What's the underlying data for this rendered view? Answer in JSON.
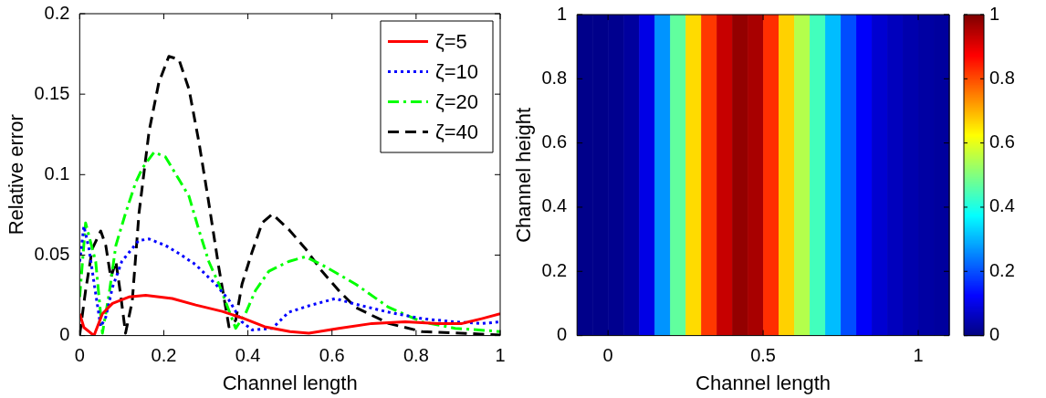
{
  "chart_data": [
    {
      "type": "line",
      "xlabel": "Channel length",
      "ylabel": "Relative error",
      "xlim": [
        0,
        1
      ],
      "ylim": [
        0,
        0.2
      ],
      "xticks": [
        0,
        0.2,
        0.4,
        0.6,
        0.8,
        1
      ],
      "yticks": [
        0,
        0.05,
        0.1,
        0.15,
        0.2
      ],
      "legend": "top right",
      "series": [
        {
          "name": "ζ=5",
          "color": "#ff0000",
          "line_style": "solid",
          "x": [
            0,
            0.01,
            0.034,
            0.054,
            0.078,
            0.117,
            0.157,
            0.22,
            0.276,
            0.339,
            0.386,
            0.44,
            0.5,
            0.545,
            0.616,
            0.695,
            0.774,
            0.853,
            0.909,
            0.956,
            1
          ],
          "values": [
            0.0135,
            0.005,
            0.0,
            0.0135,
            0.02,
            0.024,
            0.025,
            0.023,
            0.019,
            0.015,
            0.011,
            0.0055,
            0.0025,
            0.0015,
            0.0045,
            0.0075,
            0.0085,
            0.0075,
            0.0075,
            0.0105,
            0.0135
          ]
        },
        {
          "name": "ζ=10",
          "color": "#0000ff",
          "line_style": "dotted",
          "x": [
            0,
            0.01,
            0.022,
            0.038,
            0.05,
            0.062,
            0.078,
            0.1,
            0.14,
            0.165,
            0.204,
            0.236,
            0.276,
            0.323,
            0.355,
            0.386,
            0.41,
            0.458,
            0.497,
            0.545,
            0.608,
            0.656,
            0.735,
            0.814,
            0.893,
            0.956,
            1
          ],
          "values": [
            0.046,
            0.068,
            0.054,
            0.026,
            0.0055,
            0.0115,
            0.03,
            0.046,
            0.059,
            0.06,
            0.056,
            0.051,
            0.044,
            0.032,
            0.022,
            0.0085,
            0.0035,
            0.0045,
            0.0145,
            0.0185,
            0.023,
            0.0195,
            0.0145,
            0.0105,
            0.0085,
            0.0075,
            0.0085
          ]
        },
        {
          "name": "ζ=20",
          "color": "#00ff00",
          "line_style": "dashdot",
          "x": [
            0,
            0.014,
            0.026,
            0.038,
            0.054,
            0.07,
            0.086,
            0.109,
            0.133,
            0.149,
            0.177,
            0.204,
            0.236,
            0.26,
            0.283,
            0.307,
            0.331,
            0.355,
            0.371,
            0.394,
            0.418,
            0.45,
            0.497,
            0.537,
            0.576,
            0.616,
            0.656,
            0.735,
            0.814,
            0.893,
            1
          ],
          "values": [
            0.024,
            0.07,
            0.058,
            0.046,
            0.0015,
            0.026,
            0.056,
            0.076,
            0.095,
            0.104,
            0.114,
            0.111,
            0.097,
            0.0865,
            0.066,
            0.046,
            0.032,
            0.0155,
            0.0045,
            0.0135,
            0.028,
            0.04,
            0.046,
            0.049,
            0.044,
            0.038,
            0.032,
            0.0175,
            0.0085,
            0.0045,
            0.0025
          ]
        },
        {
          "name": "ζ=40",
          "color": "#000000",
          "line_style": "dashed",
          "x": [
            0,
            0.014,
            0.03,
            0.05,
            0.062,
            0.074,
            0.086,
            0.097,
            0.109,
            0.125,
            0.141,
            0.165,
            0.188,
            0.212,
            0.236,
            0.26,
            0.283,
            0.307,
            0.331,
            0.355,
            0.371,
            0.386,
            0.41,
            0.434,
            0.458,
            0.497,
            0.537,
            0.576,
            0.616,
            0.656,
            0.735,
            0.814,
            1
          ],
          "values": [
            0.0004,
            0.028,
            0.054,
            0.065,
            0.056,
            0.036,
            0.046,
            0.026,
            0.0015,
            0.0215,
            0.076,
            0.127,
            0.157,
            0.1735,
            0.1715,
            0.153,
            0.121,
            0.0825,
            0.042,
            0.0055,
            0.0095,
            0.032,
            0.052,
            0.07,
            0.0755,
            0.066,
            0.054,
            0.04,
            0.028,
            0.0175,
            0.0075,
            0.0025,
            0.0004
          ]
        }
      ]
    },
    {
      "type": "heatmap",
      "xlabel": "Channel length",
      "ylabel": "Channel height",
      "xlim": [
        -0.1,
        1.1
      ],
      "ylim": [
        0,
        1
      ],
      "xticks": [
        0,
        0.5,
        1
      ],
      "yticks": [
        0,
        0.2,
        0.4,
        0.6,
        0.8,
        1
      ],
      "clim": [
        0,
        1
      ],
      "cticks": [
        0,
        0.2,
        0.4,
        0.6,
        0.8,
        1
      ],
      "x": [
        -0.075,
        -0.025,
        0.025,
        0.075,
        0.125,
        0.175,
        0.225,
        0.275,
        0.325,
        0.375,
        0.425,
        0.475,
        0.525,
        0.575,
        0.625,
        0.675,
        0.725,
        0.775,
        0.825,
        0.875,
        0.925,
        0.975,
        1.025,
        1.075
      ],
      "cells": [
        [
          0.01,
          0.01,
          0.015,
          0.03,
          0.1,
          0.27,
          0.47,
          0.66,
          0.82,
          0.93,
          0.98,
          0.96,
          0.83,
          0.67,
          0.55,
          0.44,
          0.31,
          0.2,
          0.12,
          0.08,
          0.06,
          0.045,
          0.035,
          0.03
        ]
      ]
    }
  ]
}
